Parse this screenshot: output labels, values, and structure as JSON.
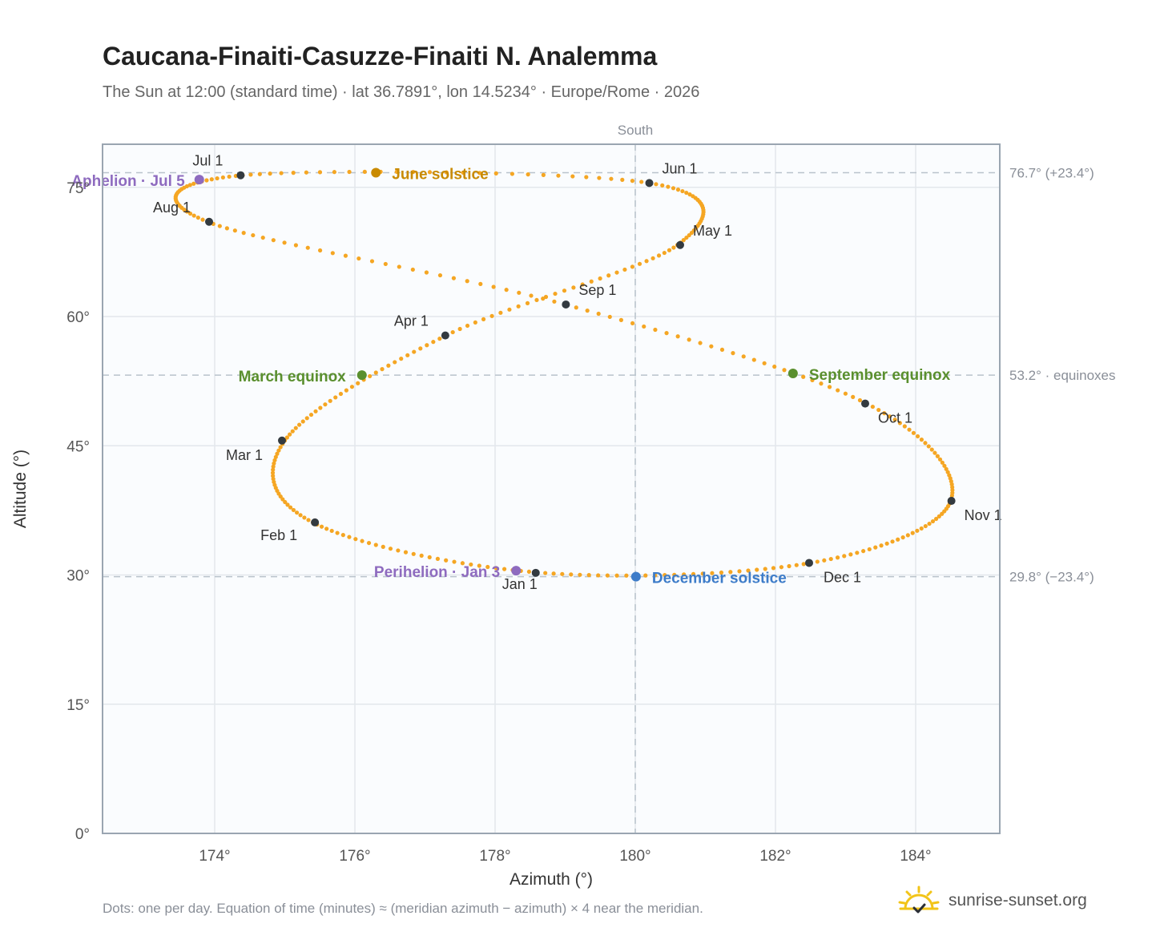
{
  "header": {
    "title": "Caucana-Finaiti-Casuzze-Finaiti N. Analemma",
    "subtitle": "The Sun at 12:00 (standard time) · lat 36.7891°, lon 14.5234° · Europe/Rome · 2026"
  },
  "footer": {
    "note": "Dots: one per day. Equation of time (minutes) ≈ (meridian azimuth − azimuth) × 4 near the meridian.",
    "brand": "sunrise-sunset.org"
  },
  "chart_data": {
    "type": "scatter",
    "xlabel": "Azimuth (°)",
    "ylabel": "Altitude (°)",
    "xlim": [
      172.4,
      185.2
    ],
    "ylim": [
      0,
      80
    ],
    "x_ticks": [
      174,
      176,
      178,
      180,
      182,
      184
    ],
    "x_tick_labels": [
      "174°",
      "176°",
      "178°",
      "180°",
      "182°",
      "184°"
    ],
    "y_ticks": [
      0,
      15,
      30,
      45,
      60,
      75
    ],
    "y_tick_labels": [
      "0°",
      "15°",
      "30°",
      "45°",
      "60°",
      "75°"
    ],
    "grid": true,
    "meridian": {
      "x": 180,
      "label": "South"
    },
    "reference_lines": [
      {
        "y": 76.7,
        "label": "76.7° (+23.4°)"
      },
      {
        "y": 53.2,
        "label": "53.2° · equinoxes"
      },
      {
        "y": 29.8,
        "label": "29.8° (−23.4°)"
      }
    ],
    "series": [
      {
        "points": [
          [
            178.6,
            30.3
          ],
          [
            175.4,
            36.1
          ],
          [
            175.0,
            45.6
          ],
          [
            177.3,
            57.8
          ],
          [
            180.6,
            68.3
          ],
          [
            180.2,
            75.5
          ],
          [
            174.4,
            76.4
          ],
          [
            173.9,
            71.0
          ],
          [
            179.0,
            61.4
          ],
          [
            183.3,
            49.9
          ],
          [
            184.5,
            38.6
          ],
          [
            182.5,
            31.4
          ],
          [
            178.6,
            30.3
          ]
        ]
      }
    ],
    "month_markers": [
      {
        "label": "Jan 1",
        "x": 178.58,
        "y": 30.25
      },
      {
        "label": "Feb 1",
        "x": 175.43,
        "y": 36.1
      },
      {
        "label": "Mar 1",
        "x": 174.96,
        "y": 45.6
      },
      {
        "label": "Apr 1",
        "x": 177.29,
        "y": 57.8
      },
      {
        "label": "May 1",
        "x": 180.64,
        "y": 68.3
      },
      {
        "label": "Jun 1",
        "x": 180.2,
        "y": 75.5
      },
      {
        "label": "Jul 1",
        "x": 174.37,
        "y": 76.4
      },
      {
        "label": "Aug 1",
        "x": 173.92,
        "y": 71.0
      },
      {
        "label": "Sep 1",
        "x": 179.01,
        "y": 61.4
      },
      {
        "label": "Oct 1",
        "x": 183.28,
        "y": 49.9
      },
      {
        "label": "Nov 1",
        "x": 184.51,
        "y": 38.6
      },
      {
        "label": "Dec 1",
        "x": 182.48,
        "y": 31.4
      }
    ],
    "events": [
      {
        "label": "June solstice",
        "x": 176.3,
        "y": 76.7,
        "color": "#c98a00"
      },
      {
        "label": "Aphelion · Jul 5",
        "x": 173.78,
        "y": 75.9,
        "color": "#8e6bbf"
      },
      {
        "label": "March equinox",
        "x": 176.1,
        "y": 53.2,
        "color": "#5a8f2e"
      },
      {
        "label": "September equinox",
        "x": 182.25,
        "y": 53.4,
        "color": "#5a8f2e"
      },
      {
        "label": "Perihelion · Jan 3",
        "x": 178.3,
        "y": 30.5,
        "color": "#8e6bbf"
      },
      {
        "label": "December solstice",
        "x": 180.01,
        "y": 29.8,
        "color": "#3d7cc9"
      }
    ],
    "colors": {
      "daily_dots": "#f5a623",
      "month_marker": "#333a40",
      "grid": "#e3e7ec",
      "reference": "#b9c3cc",
      "plot_background": "#fafcfe",
      "frame": "#9aa5b1"
    }
  }
}
